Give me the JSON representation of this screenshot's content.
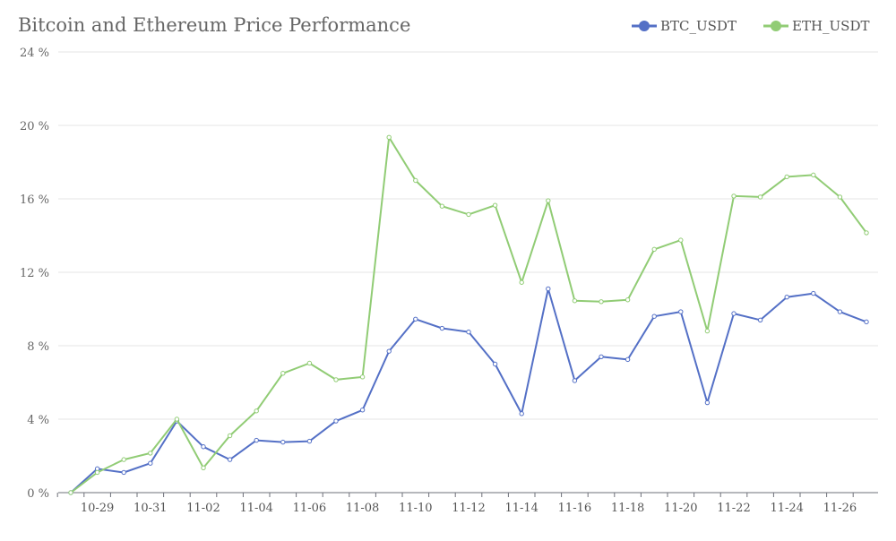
{
  "chart_data": {
    "type": "line",
    "title": "Bitcoin and Ethereum Price Performance",
    "xlabel": "",
    "ylabel": "",
    "ylim": [
      0,
      24
    ],
    "y_tick_values": [
      0,
      4,
      8,
      12,
      16,
      20,
      24
    ],
    "y_tick_suffix": " %",
    "x_tick_labels": [
      "10-29",
      "10-31",
      "11-02",
      "11-04",
      "11-06",
      "11-08",
      "11-10",
      "11-12",
      "11-14",
      "11-16",
      "11-18",
      "11-20",
      "11-22",
      "11-24",
      "11-26"
    ],
    "x_tick_indices": [
      1,
      3,
      5,
      7,
      9,
      11,
      13,
      15,
      17,
      19,
      21,
      23,
      25,
      27,
      29
    ],
    "grid": true,
    "legend_position": "top-right",
    "series": [
      {
        "name": "BTC_USDT",
        "color": "#5470c6",
        "values": [
          0,
          1.3,
          1.1,
          1.6,
          3.9,
          2.5,
          1.8,
          2.85,
          2.75,
          2.8,
          3.9,
          4.5,
          7.7,
          9.45,
          8.95,
          8.75,
          7.0,
          4.3,
          11.1,
          6.1,
          7.4,
          7.25,
          9.6,
          9.85,
          4.9,
          9.75,
          9.4,
          10.65,
          10.85,
          9.85,
          9.3
        ]
      },
      {
        "name": "ETH_USDT",
        "color": "#91cc75",
        "values": [
          0,
          1.1,
          1.8,
          2.15,
          4.0,
          1.35,
          3.1,
          4.45,
          6.5,
          7.05,
          6.15,
          6.3,
          19.35,
          17.0,
          15.6,
          15.15,
          15.65,
          11.45,
          15.9,
          10.45,
          10.4,
          10.5,
          13.25,
          13.75,
          8.8,
          16.15,
          16.1,
          17.2,
          17.3,
          16.1,
          14.15
        ]
      }
    ]
  }
}
